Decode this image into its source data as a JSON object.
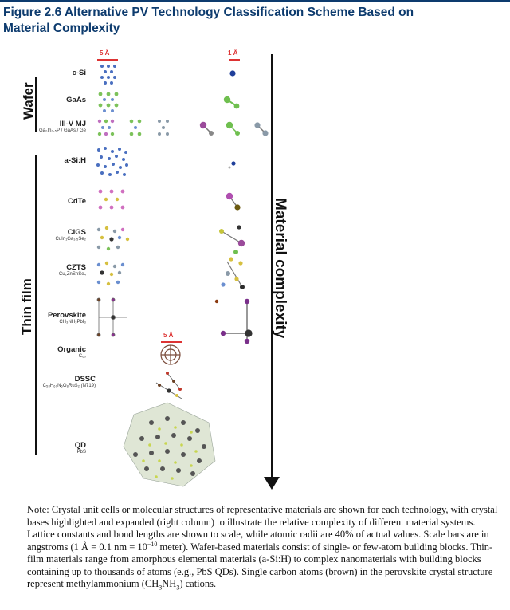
{
  "figure": {
    "title_line1": "Figure 2.6  Alternative PV Technology Classification Scheme Based on",
    "title_line2": "Material Complexity"
  },
  "groups": {
    "wafer": "Wafer",
    "thin_film": "Thin film"
  },
  "scale_bars": {
    "left": "5 Å",
    "right": "1 Å",
    "organic": "5 Å"
  },
  "axis_label": "Material complexity",
  "materials": [
    {
      "name": "c-Si",
      "formula": ""
    },
    {
      "name": "GaAs",
      "formula": ""
    },
    {
      "name": "III-V MJ",
      "formula": "Ga₀In₀.₅P / GaAs / Ge"
    },
    {
      "name": "a-Si:H",
      "formula": ""
    },
    {
      "name": "CdTe",
      "formula": ""
    },
    {
      "name": "CIGS",
      "formula": "CuIn₁Ga₁.₅Se₂"
    },
    {
      "name": "CZTS",
      "formula": "Cu₂ZnSnSe₄"
    },
    {
      "name": "Perovskite",
      "formula": "CH₃NH₃PbI₃"
    },
    {
      "name": "Organic",
      "formula": "C₆₀"
    },
    {
      "name": "DSSC",
      "formula": "C₅₈H₆₀N₆O₈RuS₂ (N719)"
    },
    {
      "name": "QD",
      "formula": "PbS"
    }
  ],
  "note": {
    "p1": "Note: Crystal unit cells or molecular structures of representative materials are shown for each technology, with crystal bases highlighted and expanded (right column) to illustrate the relative complexity of different material systems. Lattice constants and bond lengths are shown to scale, while atomic radii are 40% of actual values. Scale bars are in angstroms (1 Å = 0.1 nm = 10",
    "p1_sup": "−10",
    "p1_end": " meter). Wafer-based materials consist of single- or few-atom building blocks. Thin-film materials range from amorphous elemental materials (a-Si:H) to complex nanomaterials with building blocks containing up to thousands of atoms (e.g., PbS QDs). Single carbon atoms (brown) in the perovskite crystal structure represent methylammonium (CH",
    "p1_sub1": "3",
    "p1_mid": "NH",
    "p1_sub2": "3",
    "p1_tail": ") cations."
  }
}
